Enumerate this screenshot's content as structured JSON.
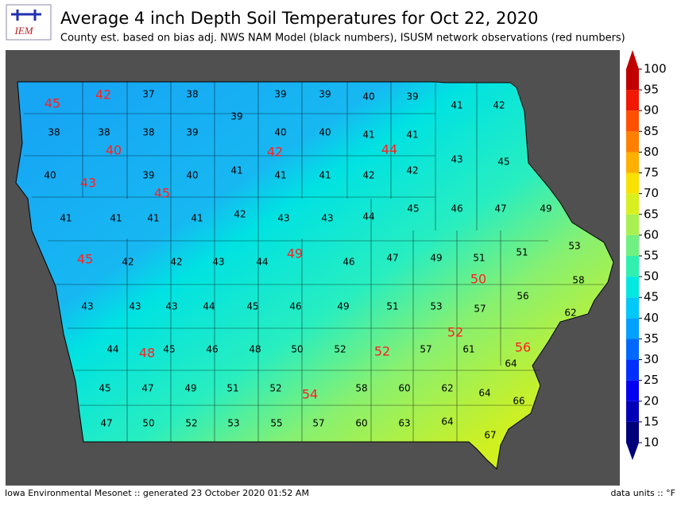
{
  "header": {
    "logo": "IEM",
    "title": "Average 4 inch Depth Soil Temperatures for Oct 22, 2020",
    "subtitle": "County est. based on bias adj. NWS NAM Model (black numbers), ISUSM network observations (red numbers)"
  },
  "map": {
    "county_estimates": [
      37,
      38,
      39,
      39,
      40,
      39,
      41,
      42,
      39,
      38,
      38,
      38,
      39,
      40,
      40,
      41,
      41,
      43,
      45,
      40,
      39,
      40,
      41,
      41,
      41,
      42,
      42,
      41,
      41,
      41,
      41,
      42,
      43,
      43,
      44,
      45,
      46,
      47,
      49,
      42,
      42,
      43,
      44,
      46,
      47,
      49,
      51,
      51,
      53,
      43,
      43,
      43,
      44,
      45,
      46,
      49,
      51,
      53,
      57,
      56,
      58,
      62,
      44,
      45,
      46,
      48,
      50,
      52,
      57,
      61,
      64,
      45,
      47,
      49,
      51,
      52,
      58,
      60,
      62,
      64,
      66,
      47,
      50,
      52,
      53,
      55,
      57,
      60,
      63,
      64,
      67
    ],
    "observations": [
      45,
      42,
      40,
      43,
      45,
      42,
      44,
      45,
      49,
      50,
      52,
      48,
      52,
      56,
      54
    ],
    "colorbar": {
      "lim": [
        10,
        100
      ],
      "ticks": [
        10,
        15,
        20,
        25,
        30,
        35,
        40,
        45,
        50,
        55,
        60,
        65,
        70,
        75,
        80,
        85,
        90,
        95,
        100
      ],
      "colors": [
        "#00007a",
        "#0000b8",
        "#0000f0",
        "#0030ff",
        "#0068ff",
        "#00a0ff",
        "#00c8f8",
        "#00e8e0",
        "#30f0b0",
        "#70f080",
        "#a8f050",
        "#d8f020",
        "#f8e000",
        "#ffb000",
        "#ff8000",
        "#ff5000",
        "#f01800",
        "#c00000"
      ]
    }
  },
  "footer": {
    "left": "Iowa Environmental Mesonet :: generated 23 October 2020 01:52 AM",
    "right": "data units :: °F"
  }
}
